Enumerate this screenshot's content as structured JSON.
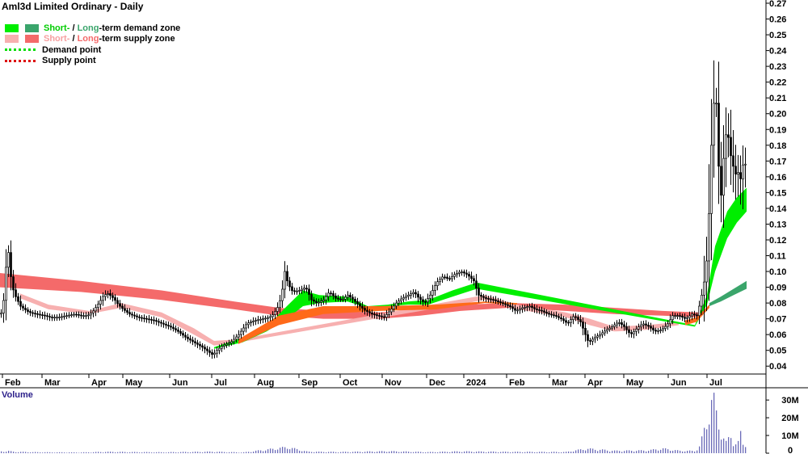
{
  "title": "Aml3d Limited Ordinary - Daily",
  "legend": {
    "demand_zone": {
      "short": "Short-",
      "sep": " / ",
      "long": "Long",
      "rest": "-term demand zone"
    },
    "supply_zone": {
      "short": "Short-",
      "sep": " / ",
      "long": "Long",
      "rest": "-term supply zone"
    },
    "demand_point": "Demand point",
    "supply_point": "Supply point"
  },
  "colors": {
    "short_demand": "#00ee00",
    "long_demand": "#3aa56b",
    "short_supply": "#f7b0b0",
    "long_supply": "#f46a6a",
    "bridge": "#ff6a1a",
    "candles": "#000000",
    "volume": "#3a3aa0"
  },
  "volume_label": "Volume",
  "chart_data": {
    "type": "candlestick",
    "price_axis": {
      "ylim": [
        0.035,
        0.27
      ],
      "ticks": [
        0.04,
        0.05,
        0.06,
        0.07,
        0.08,
        0.09,
        0.1,
        0.11,
        0.12,
        0.13,
        0.14,
        0.15,
        0.16,
        0.17,
        0.18,
        0.19,
        0.2,
        0.21,
        0.22,
        0.23,
        0.24,
        0.25,
        0.26,
        0.27
      ]
    },
    "tick_labels": [
      "0.04",
      "0.05",
      "0.06",
      "0.07",
      "0.08",
      "0.09",
      "0.10",
      "0.11",
      "0.12",
      "0.13",
      "0.14",
      "0.15",
      "0.16",
      "0.17",
      "0.18",
      "0.19",
      "0.20",
      "0.21",
      "0.22",
      "0.23",
      "0.24",
      "0.25",
      "0.26",
      "0.27"
    ],
    "x_labels": [
      "Feb",
      "Mar",
      "Apr",
      "May",
      "Jun",
      "Jul",
      "Aug",
      "Sep",
      "Oct",
      "Nov",
      "Dec",
      "2024",
      "Feb",
      "Mar",
      "Apr",
      "May",
      "Jun",
      "Jul"
    ],
    "x_positions": [
      6,
      55,
      113,
      155,
      213,
      265,
      318,
      373,
      424,
      476,
      531,
      577,
      630,
      683,
      727,
      775,
      830,
      878
    ],
    "volume_axis": {
      "ylim": [
        0,
        36
      ],
      "ticks": [
        0,
        10,
        20,
        30
      ],
      "tick_labels": [
        "0",
        "10M",
        "20M",
        "30M"
      ]
    },
    "close_path": [
      [
        0,
        0.073
      ],
      [
        3,
        0.075
      ],
      [
        6,
        0.095
      ],
      [
        9,
        0.118
      ],
      [
        12,
        0.1
      ],
      [
        15,
        0.09
      ],
      [
        18,
        0.085
      ],
      [
        21,
        0.082
      ],
      [
        25,
        0.078
      ],
      [
        30,
        0.076
      ],
      [
        36,
        0.074
      ],
      [
        45,
        0.073
      ],
      [
        55,
        0.072
      ],
      [
        62,
        0.071
      ],
      [
        72,
        0.071
      ],
      [
        82,
        0.072
      ],
      [
        92,
        0.073
      ],
      [
        100,
        0.072
      ],
      [
        108,
        0.072
      ],
      [
        115,
        0.075
      ],
      [
        122,
        0.08
      ],
      [
        128,
        0.085
      ],
      [
        133,
        0.086
      ],
      [
        140,
        0.083
      ],
      [
        146,
        0.079
      ],
      [
        152,
        0.076
      ],
      [
        160,
        0.073
      ],
      [
        170,
        0.071
      ],
      [
        180,
        0.07
      ],
      [
        190,
        0.069
      ],
      [
        200,
        0.067
      ],
      [
        210,
        0.065
      ],
      [
        220,
        0.062
      ],
      [
        230,
        0.058
      ],
      [
        240,
        0.055
      ],
      [
        250,
        0.052
      ],
      [
        258,
        0.049
      ],
      [
        263,
        0.047
      ],
      [
        268,
        0.05
      ],
      [
        275,
        0.053
      ],
      [
        285,
        0.055
      ],
      [
        295,
        0.06
      ],
      [
        305,
        0.067
      ],
      [
        315,
        0.069
      ],
      [
        325,
        0.07
      ],
      [
        333,
        0.071
      ],
      [
        338,
        0.073
      ],
      [
        344,
        0.078
      ],
      [
        348,
        0.085
      ],
      [
        352,
        0.1
      ],
      [
        356,
        0.092
      ],
      [
        362,
        0.087
      ],
      [
        370,
        0.088
      ],
      [
        378,
        0.09
      ],
      [
        385,
        0.082
      ],
      [
        392,
        0.08
      ],
      [
        400,
        0.082
      ],
      [
        407,
        0.087
      ],
      [
        415,
        0.083
      ],
      [
        423,
        0.082
      ],
      [
        430,
        0.085
      ],
      [
        437,
        0.082
      ],
      [
        445,
        0.078
      ],
      [
        452,
        0.075
      ],
      [
        460,
        0.073
      ],
      [
        467,
        0.072
      ],
      [
        475,
        0.071
      ],
      [
        482,
        0.075
      ],
      [
        490,
        0.08
      ],
      [
        497,
        0.083
      ],
      [
        505,
        0.085
      ],
      [
        512,
        0.087
      ],
      [
        518,
        0.083
      ],
      [
        525,
        0.08
      ],
      [
        532,
        0.085
      ],
      [
        540,
        0.093
      ],
      [
        548,
        0.097
      ],
      [
        555,
        0.095
      ],
      [
        562,
        0.098
      ],
      [
        570,
        0.1
      ],
      [
        578,
        0.098
      ],
      [
        586,
        0.094
      ],
      [
        592,
        0.085
      ],
      [
        600,
        0.083
      ],
      [
        610,
        0.082
      ],
      [
        620,
        0.08
      ],
      [
        630,
        0.078
      ],
      [
        638,
        0.075
      ],
      [
        646,
        0.077
      ],
      [
        655,
        0.078
      ],
      [
        662,
        0.076
      ],
      [
        670,
        0.075
      ],
      [
        678,
        0.073
      ],
      [
        686,
        0.072
      ],
      [
        694,
        0.07
      ],
      [
        702,
        0.067
      ],
      [
        710,
        0.072
      ],
      [
        718,
        0.068
      ],
      [
        724,
        0.06
      ],
      [
        728,
        0.055
      ],
      [
        735,
        0.058
      ],
      [
        742,
        0.06
      ],
      [
        750,
        0.063
      ],
      [
        757,
        0.065
      ],
      [
        765,
        0.068
      ],
      [
        772,
        0.065
      ],
      [
        780,
        0.06
      ],
      [
        788,
        0.064
      ],
      [
        795,
        0.067
      ],
      [
        803,
        0.065
      ],
      [
        810,
        0.062
      ],
      [
        818,
        0.063
      ],
      [
        825,
        0.066
      ],
      [
        832,
        0.072
      ],
      [
        840,
        0.072
      ],
      [
        848,
        0.07
      ],
      [
        856,
        0.073
      ],
      [
        862,
        0.072
      ],
      [
        866,
        0.08
      ],
      [
        870,
        0.09
      ],
      [
        873,
        0.1
      ],
      [
        876,
        0.12
      ],
      [
        879,
        0.17
      ],
      [
        882,
        0.2
      ],
      [
        885,
        0.22
      ],
      [
        888,
        0.18
      ],
      [
        891,
        0.14
      ],
      [
        894,
        0.165
      ],
      [
        897,
        0.185
      ],
      [
        900,
        0.19
      ],
      [
        903,
        0.175
      ],
      [
        906,
        0.17
      ],
      [
        909,
        0.16
      ],
      [
        912,
        0.165
      ],
      [
        915,
        0.158
      ],
      [
        918,
        0.16
      ],
      [
        920,
        0.175
      ],
      [
        922,
        0.168
      ],
      [
        924,
        0.18
      ]
    ],
    "long_supply_zone": {
      "top": [
        [
          0,
          0.099
        ],
        [
          100,
          0.094
        ],
        [
          200,
          0.088
        ],
        [
          290,
          0.081
        ],
        [
          345,
          0.077
        ],
        [
          400,
          0.075
        ],
        [
          470,
          0.074
        ],
        [
          520,
          0.076
        ],
        [
          570,
          0.079
        ],
        [
          630,
          0.08
        ],
        [
          700,
          0.079
        ],
        [
          760,
          0.077
        ],
        [
          820,
          0.075
        ],
        [
          865,
          0.074
        ]
      ],
      "bottom": [
        [
          0,
          0.09
        ],
        [
          100,
          0.087
        ],
        [
          200,
          0.082
        ],
        [
          290,
          0.076
        ],
        [
          345,
          0.072
        ],
        [
          400,
          0.07
        ],
        [
          470,
          0.07
        ],
        [
          520,
          0.072
        ],
        [
          570,
          0.075
        ],
        [
          630,
          0.077
        ],
        [
          700,
          0.075
        ],
        [
          760,
          0.073
        ],
        [
          820,
          0.072
        ],
        [
          865,
          0.071
        ]
      ]
    },
    "short_supply_zone": {
      "top": [
        [
          25,
          0.086
        ],
        [
          60,
          0.079
        ],
        [
          110,
          0.075
        ],
        [
          150,
          0.08
        ],
        [
          200,
          0.074
        ],
        [
          240,
          0.064
        ],
        [
          265,
          0.056
        ],
        [
          295,
          0.057
        ],
        [
          600,
          0.085
        ],
        [
          640,
          0.079
        ],
        [
          700,
          0.074
        ],
        [
          730,
          0.07
        ],
        [
          760,
          0.065
        ],
        [
          800,
          0.066
        ],
        [
          840,
          0.068
        ]
      ],
      "bottom": [
        [
          25,
          0.083
        ],
        [
          60,
          0.076
        ],
        [
          110,
          0.073
        ],
        [
          150,
          0.077
        ],
        [
          200,
          0.071
        ],
        [
          240,
          0.06
        ],
        [
          265,
          0.053
        ],
        [
          295,
          0.055
        ],
        [
          600,
          0.082
        ],
        [
          640,
          0.076
        ],
        [
          700,
          0.071
        ],
        [
          730,
          0.066
        ],
        [
          760,
          0.062
        ],
        [
          800,
          0.063
        ],
        [
          840,
          0.066
        ]
      ]
    },
    "short_demand_zone": {
      "top": [
        [
          265,
          0.052
        ],
        [
          300,
          0.058
        ],
        [
          330,
          0.065
        ],
        [
          355,
          0.078
        ],
        [
          375,
          0.088
        ],
        [
          395,
          0.085
        ],
        [
          430,
          0.084
        ],
        [
          455,
          0.078
        ],
        [
          480,
          0.079
        ],
        [
          505,
          0.081
        ],
        [
          530,
          0.082
        ],
        [
          560,
          0.088
        ],
        [
          590,
          0.093
        ],
        [
          860,
          0.066
        ],
        [
          875,
          0.085
        ],
        [
          885,
          0.116
        ],
        [
          900,
          0.138
        ],
        [
          912,
          0.147
        ],
        [
          924,
          0.153
        ]
      ],
      "bottom": [
        [
          265,
          0.051
        ],
        [
          300,
          0.055
        ],
        [
          330,
          0.062
        ],
        [
          355,
          0.07
        ],
        [
          375,
          0.078
        ],
        [
          395,
          0.08
        ],
        [
          430,
          0.081
        ],
        [
          455,
          0.077
        ],
        [
          480,
          0.078
        ],
        [
          505,
          0.079
        ],
        [
          530,
          0.079
        ],
        [
          560,
          0.084
        ],
        [
          590,
          0.089
        ],
        [
          860,
          0.065
        ],
        [
          875,
          0.079
        ],
        [
          885,
          0.1
        ],
        [
          900,
          0.121
        ],
        [
          912,
          0.131
        ],
        [
          924,
          0.138
        ]
      ]
    },
    "long_demand_zone": {
      "top": [
        [
          878,
          0.08
        ],
        [
          892,
          0.084
        ],
        [
          908,
          0.089
        ],
        [
          924,
          0.094
        ]
      ],
      "bottom": [
        [
          878,
          0.078
        ],
        [
          892,
          0.081
        ],
        [
          908,
          0.085
        ],
        [
          924,
          0.089
        ]
      ]
    },
    "volume_series": [
      [
        6,
        1.2
      ],
      [
        10,
        1.5
      ],
      [
        15,
        1
      ],
      [
        20,
        0.9
      ],
      [
        40,
        0.7
      ],
      [
        60,
        0.6
      ],
      [
        100,
        0.5
      ],
      [
        130,
        0.9
      ],
      [
        200,
        0.6
      ],
      [
        262,
        1
      ],
      [
        300,
        0.5
      ],
      [
        340,
        3
      ],
      [
        355,
        4
      ],
      [
        380,
        1
      ],
      [
        420,
        0.8
      ],
      [
        480,
        1.3
      ],
      [
        530,
        0.7
      ],
      [
        570,
        1.2
      ],
      [
        620,
        0.9
      ],
      [
        700,
        0.8
      ],
      [
        725,
        3
      ],
      [
        760,
        1.6
      ],
      [
        800,
        1.8
      ],
      [
        820,
        3
      ],
      [
        840,
        1.6
      ],
      [
        860,
        1.5
      ],
      [
        866,
        5
      ],
      [
        870,
        14
      ],
      [
        874,
        20
      ],
      [
        878,
        32
      ],
      [
        881,
        37
      ],
      [
        884,
        33
      ],
      [
        887,
        22
      ],
      [
        891,
        16
      ],
      [
        895,
        10
      ],
      [
        899,
        6
      ],
      [
        903,
        13
      ],
      [
        907,
        8
      ],
      [
        912,
        5
      ],
      [
        916,
        13
      ],
      [
        920,
        4
      ],
      [
        924,
        11
      ]
    ]
  }
}
